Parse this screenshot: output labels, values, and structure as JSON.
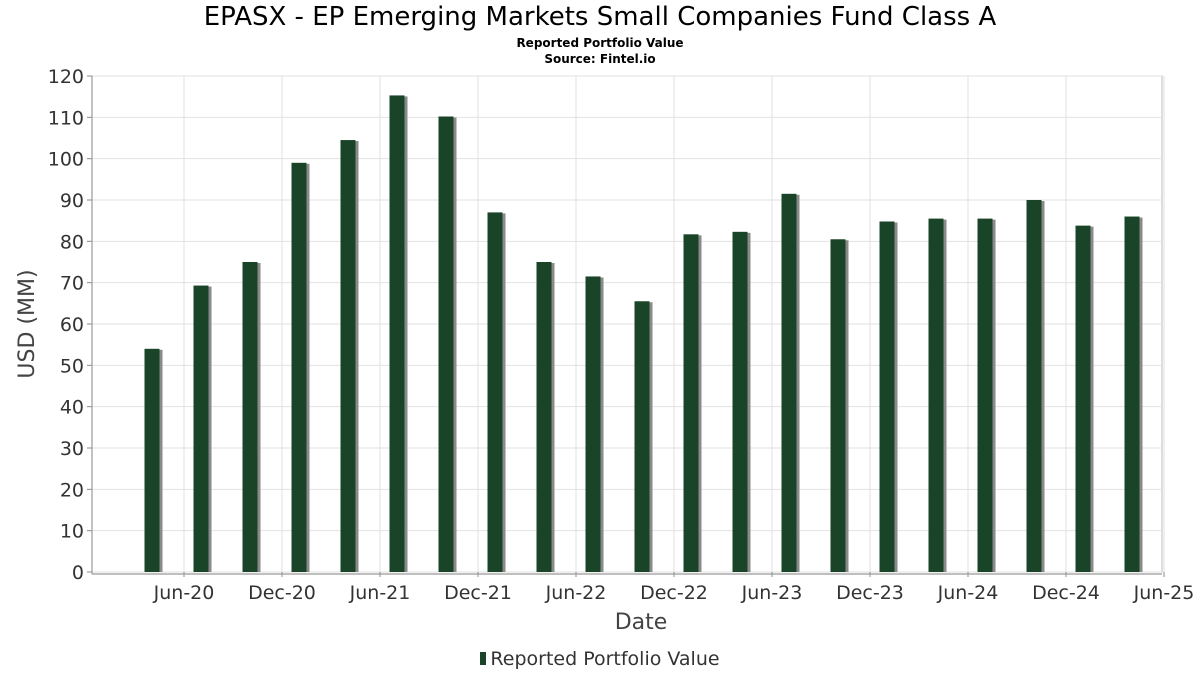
{
  "chart_data": {
    "type": "bar",
    "title": "EPASX - EP Emerging Markets Small Companies Fund Class A",
    "subtitle": "Reported Portfolio Value",
    "source": "Source: Fintel.io",
    "xlabel": "Date",
    "ylabel": "USD (MM)",
    "ylim": [
      0,
      120
    ],
    "yticks": [
      0,
      10,
      20,
      30,
      40,
      50,
      60,
      70,
      80,
      90,
      100,
      110,
      120
    ],
    "xticks": [
      "Jun-20",
      "Dec-20",
      "Jun-21",
      "Dec-21",
      "Jun-22",
      "Dec-22",
      "Jun-23",
      "Dec-23",
      "Jun-24",
      "Dec-24",
      "Jun-25"
    ],
    "grid": true,
    "legend_position": "bottom",
    "bar_color": "#1a4428",
    "series": [
      {
        "name": "Reported Portfolio Value",
        "values": [
          54,
          69.3,
          75,
          99,
          104.5,
          115.3,
          110.2,
          87,
          75,
          71.5,
          65.5,
          81.7,
          82.3,
          91.5,
          80.5,
          84.8,
          85.5,
          85.5,
          90,
          83.8,
          86
        ]
      }
    ]
  }
}
